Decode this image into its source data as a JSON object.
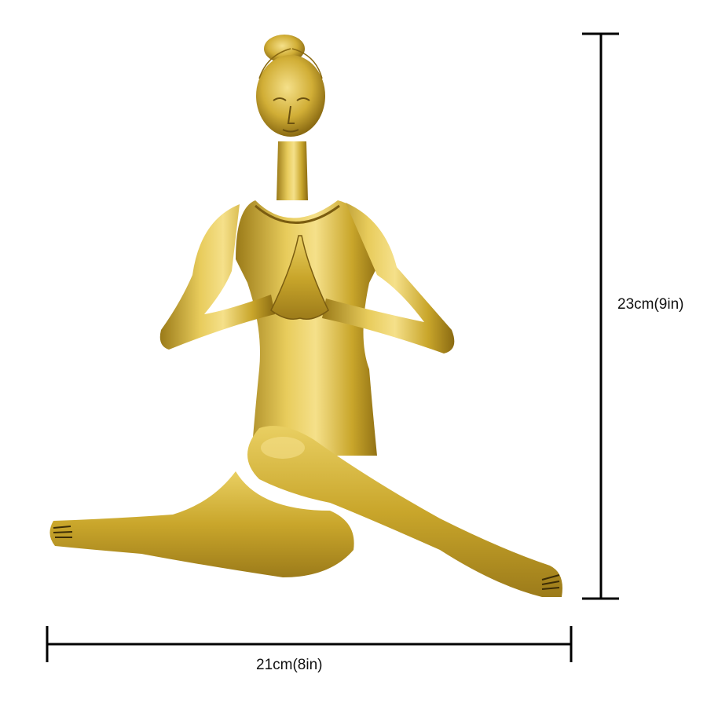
{
  "image": {
    "subject": "gold-toned brass yoga statue",
    "background_color": "#ffffff",
    "metal_color": "#c9a62b",
    "metal_highlight": "#f3dc7a",
    "metal_shadow": "#8a6a12"
  },
  "dimensions": {
    "height_label": "23cm(9in)",
    "width_label": "21cm(8in)",
    "line_color": "#000000"
  }
}
